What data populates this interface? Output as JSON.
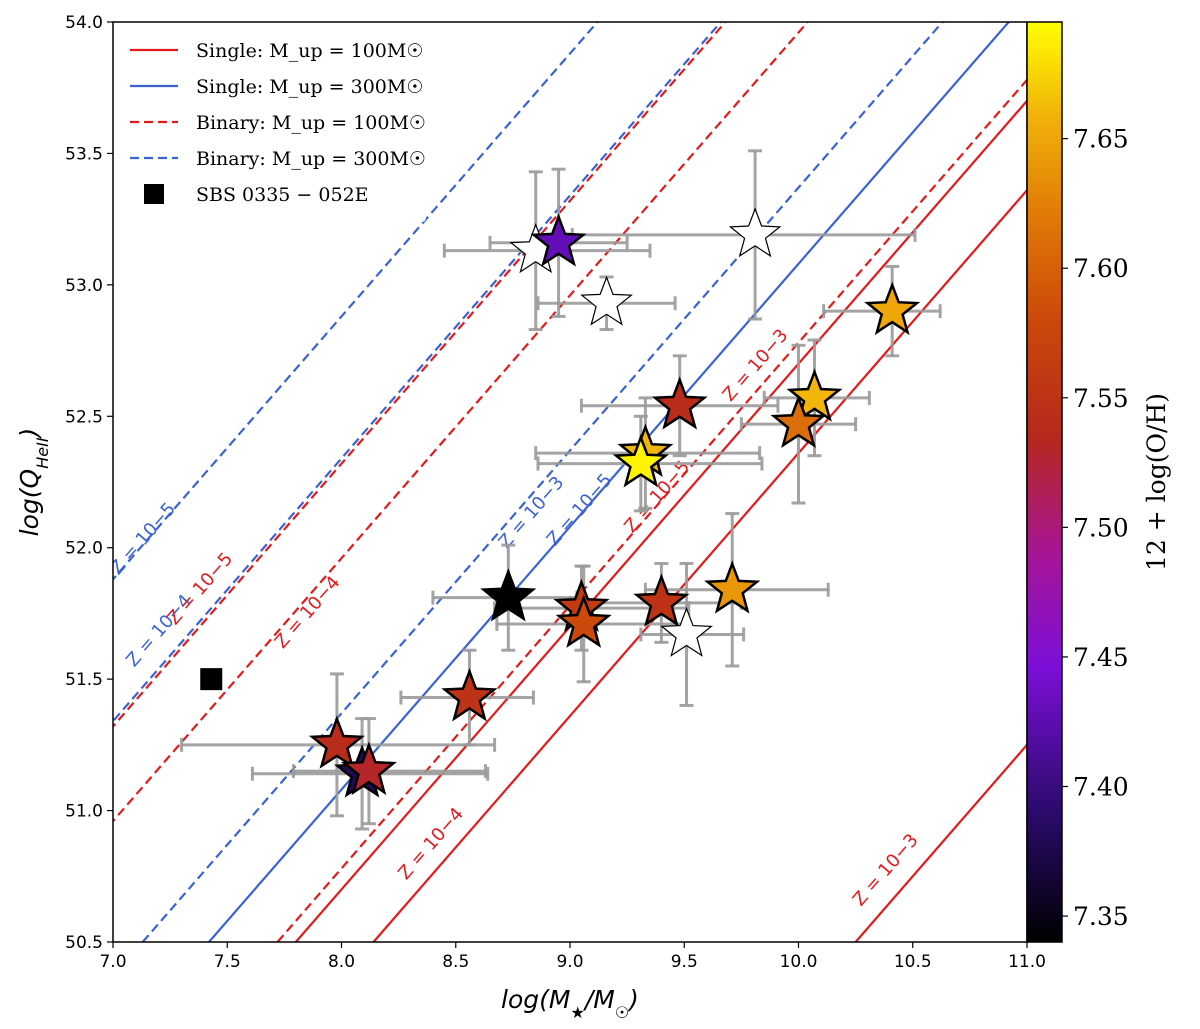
{
  "chart_data": {
    "type": "scatter",
    "xlabel": "log(M★/M☉)",
    "ylabel": "log(Q_HeII)",
    "xlim": [
      7.0,
      11.0
    ],
    "ylim": [
      50.5,
      54.0
    ],
    "xticks": [
      "7.0",
      "7.5",
      "8.0",
      "8.5",
      "9.0",
      "9.5",
      "10.0",
      "10.5",
      "11.0"
    ],
    "yticks": [
      "50.5",
      "51.0",
      "51.5",
      "52.0",
      "52.5",
      "53.0",
      "53.5",
      "54.0"
    ],
    "colorbar": {
      "label": "12 + log(O/H)",
      "range": [
        7.34,
        7.695
      ],
      "ticks": [
        "7.35",
        "7.40",
        "7.45",
        "7.50",
        "7.55",
        "7.60",
        "7.65"
      ]
    },
    "legend": [
      {
        "label": "Single: M_up = 100M☉",
        "color": "#e31a1c",
        "dash": false
      },
      {
        "label": "Single: M_up = 300M☉",
        "color": "#3b62d4",
        "dash": false
      },
      {
        "label": "Binary: M_up = 100M☉",
        "color": "#e31a1c",
        "dash": true
      },
      {
        "label": "Binary: M_up = 300M☉",
        "color": "#3b62d4",
        "dash": true
      },
      {
        "label": "SBS 0335 − 052E",
        "color": "#000000",
        "marker": "square"
      }
    ],
    "lines": [
      {
        "model": "single-100",
        "Z": "Z = 10−3",
        "color": "#e31a1c",
        "dash": false,
        "x0": 10.25,
        "slope": 1.0
      },
      {
        "model": "single-100",
        "Z": "Z = 10−4",
        "color": "#e31a1c",
        "dash": false,
        "x0": 8.14,
        "slope": 1.0
      },
      {
        "model": "single-100",
        "Z": "Z = 10−5",
        "color": "#e31a1c",
        "dash": false,
        "x0": 7.8,
        "slope": 1.0
      },
      {
        "model": "single-300",
        "Z": "Z = 10−3",
        "color": "#3b62d4",
        "dash": false,
        "x0": 7.42,
        "slope": 1.0
      },
      {
        "model": "binary-100",
        "Z": "Z = 10−3",
        "color": "#e31a1c",
        "dash": true,
        "x0": 7.72,
        "slope": 1.0
      },
      {
        "model": "binary-100",
        "Z": "Z = 10−4",
        "color": "#e31a1c",
        "dash": true,
        "x0": 6.54,
        "slope": 1.0
      },
      {
        "model": "binary-100",
        "Z": "Z = 10−5",
        "color": "#e31a1c",
        "dash": true,
        "x0": 6.18,
        "slope": 1.0
      },
      {
        "model": "binary-300",
        "Z": "Z = 10−3",
        "color": "#3b62d4",
        "dash": true,
        "x0": 7.13,
        "slope": 1.0
      },
      {
        "model": "binary-300",
        "Z": "Z = 10−4",
        "color": "#3b62d4",
        "dash": true,
        "x0": 6.16,
        "slope": 1.0
      },
      {
        "model": "binary-300",
        "Z": "Z = 10−5",
        "color": "#3b62d4",
        "dash": true,
        "x0": 5.62,
        "slope": 1.0
      }
    ],
    "line_labels": [
      {
        "text": "Z = 10−5",
        "color": "#3b62d4",
        "x": 7.15,
        "y": 52.02
      },
      {
        "text": "Z = 10−4",
        "color": "#3b62d4",
        "x": 7.22,
        "y": 51.67
      },
      {
        "text": "Z = 10−5",
        "color": "#e31a1c",
        "x": 7.4,
        "y": 51.83
      },
      {
        "text": "Z = 10−4",
        "color": "#e31a1c",
        "x": 7.87,
        "y": 51.74
      },
      {
        "text": "Z = 10−3",
        "color": "#3b62d4",
        "x": 8.85,
        "y": 52.12
      },
      {
        "text": "Z = 10−5",
        "color": "#3b62d4",
        "x": 9.06,
        "y": 52.13
      },
      {
        "text": "Z = 10−5",
        "color": "#e31a1c",
        "x": 9.4,
        "y": 52.18
      },
      {
        "text": "Z = 10−3",
        "color": "#e31a1c",
        "x": 9.83,
        "y": 52.68
      },
      {
        "text": "Z = 10−4",
        "color": "#e31a1c",
        "x": 8.41,
        "y": 50.86
      },
      {
        "text": "Z = 10−3",
        "color": "#e31a1c",
        "x": 10.4,
        "y": 50.76
      }
    ],
    "sbs_point": {
      "name": "SBS 0335 − 052E",
      "x": 7.43,
      "y": 51.5
    },
    "points": [
      {
        "x": 8.85,
        "y": 53.13,
        "xerr": [
          0.4,
          0.5
        ],
        "yerr": [
          0.3,
          0.3
        ],
        "oh": null
      },
      {
        "x": 8.95,
        "y": 53.16,
        "xerr": [
          0.3,
          0.3
        ],
        "yerr": [
          0.28,
          0.28
        ],
        "oh": 7.43
      },
      {
        "x": 9.81,
        "y": 53.19,
        "xerr": [
          0.8,
          0.7
        ],
        "yerr": [
          0.32,
          0.32
        ],
        "oh": null
      },
      {
        "x": 9.16,
        "y": 52.93,
        "xerr": [
          0.3,
          0.3
        ],
        "yerr": [
          0.1,
          0.1
        ],
        "oh": null
      },
      {
        "x": 10.41,
        "y": 52.9,
        "xerr": [
          0.3,
          0.21
        ],
        "yerr": [
          0.17,
          0.17
        ],
        "oh": 7.65
      },
      {
        "x": 10.07,
        "y": 52.57,
        "xerr": [
          0.22,
          0.24
        ],
        "yerr": [
          0.22,
          0.22
        ],
        "oh": 7.66
      },
      {
        "x": 10.0,
        "y": 52.47,
        "xerr": [
          0.25,
          0.25
        ],
        "yerr": [
          0.3,
          0.3
        ],
        "oh": 7.61
      },
      {
        "x": 9.48,
        "y": 52.54,
        "xerr": [
          0.43,
          0.43
        ],
        "yerr": [
          0.19,
          0.19
        ],
        "oh": 7.54
      },
      {
        "x": 9.33,
        "y": 52.36,
        "xerr": [
          0.48,
          0.5
        ],
        "yerr": [
          0.21,
          0.21
        ],
        "oh": 7.66
      },
      {
        "x": 9.31,
        "y": 52.32,
        "xerr": [
          0.45,
          0.53
        ],
        "yerr": [
          0.18,
          0.18
        ],
        "oh": 7.69
      },
      {
        "x": 8.73,
        "y": 51.81,
        "xerr": [
          0.33,
          0.3
        ],
        "yerr": [
          0.2,
          0.2
        ],
        "oh": "black"
      },
      {
        "x": 9.05,
        "y": 51.77,
        "xerr": [
          0.38,
          0.47
        ],
        "yerr": [
          0.16,
          0.16
        ],
        "oh": 7.56
      },
      {
        "x": 9.06,
        "y": 51.71,
        "xerr": [
          0.38,
          0.45
        ],
        "yerr": [
          0.22,
          0.22
        ],
        "oh": 7.58
      },
      {
        "x": 9.4,
        "y": 51.79,
        "xerr": [
          0.4,
          0.35
        ],
        "yerr": [
          0.15,
          0.15
        ],
        "oh": 7.55
      },
      {
        "x": 9.71,
        "y": 51.84,
        "xerr": [
          0.38,
          0.42
        ],
        "yerr": [
          0.29,
          0.29
        ],
        "oh": 7.64
      },
      {
        "x": 9.51,
        "y": 51.67,
        "xerr": [
          0.2,
          0.25
        ],
        "yerr": [
          0.27,
          0.27
        ],
        "oh": null
      },
      {
        "x": 8.56,
        "y": 51.43,
        "xerr": [
          0.3,
          0.28
        ],
        "yerr": [
          0.18,
          0.18
        ],
        "oh": 7.55
      },
      {
        "x": 7.98,
        "y": 51.25,
        "xerr": [
          0.68,
          0.69
        ],
        "yerr": [
          0.27,
          0.27
        ],
        "oh": 7.54
      },
      {
        "x": 8.09,
        "y": 51.14,
        "xerr": [
          0.48,
          0.55
        ],
        "yerr": [
          0.21,
          0.21
        ],
        "oh": 7.38
      },
      {
        "x": 8.12,
        "y": 51.15,
        "xerr": [
          0.33,
          0.51
        ],
        "yerr": [
          0.2,
          0.2
        ],
        "oh": 7.53
      }
    ]
  }
}
